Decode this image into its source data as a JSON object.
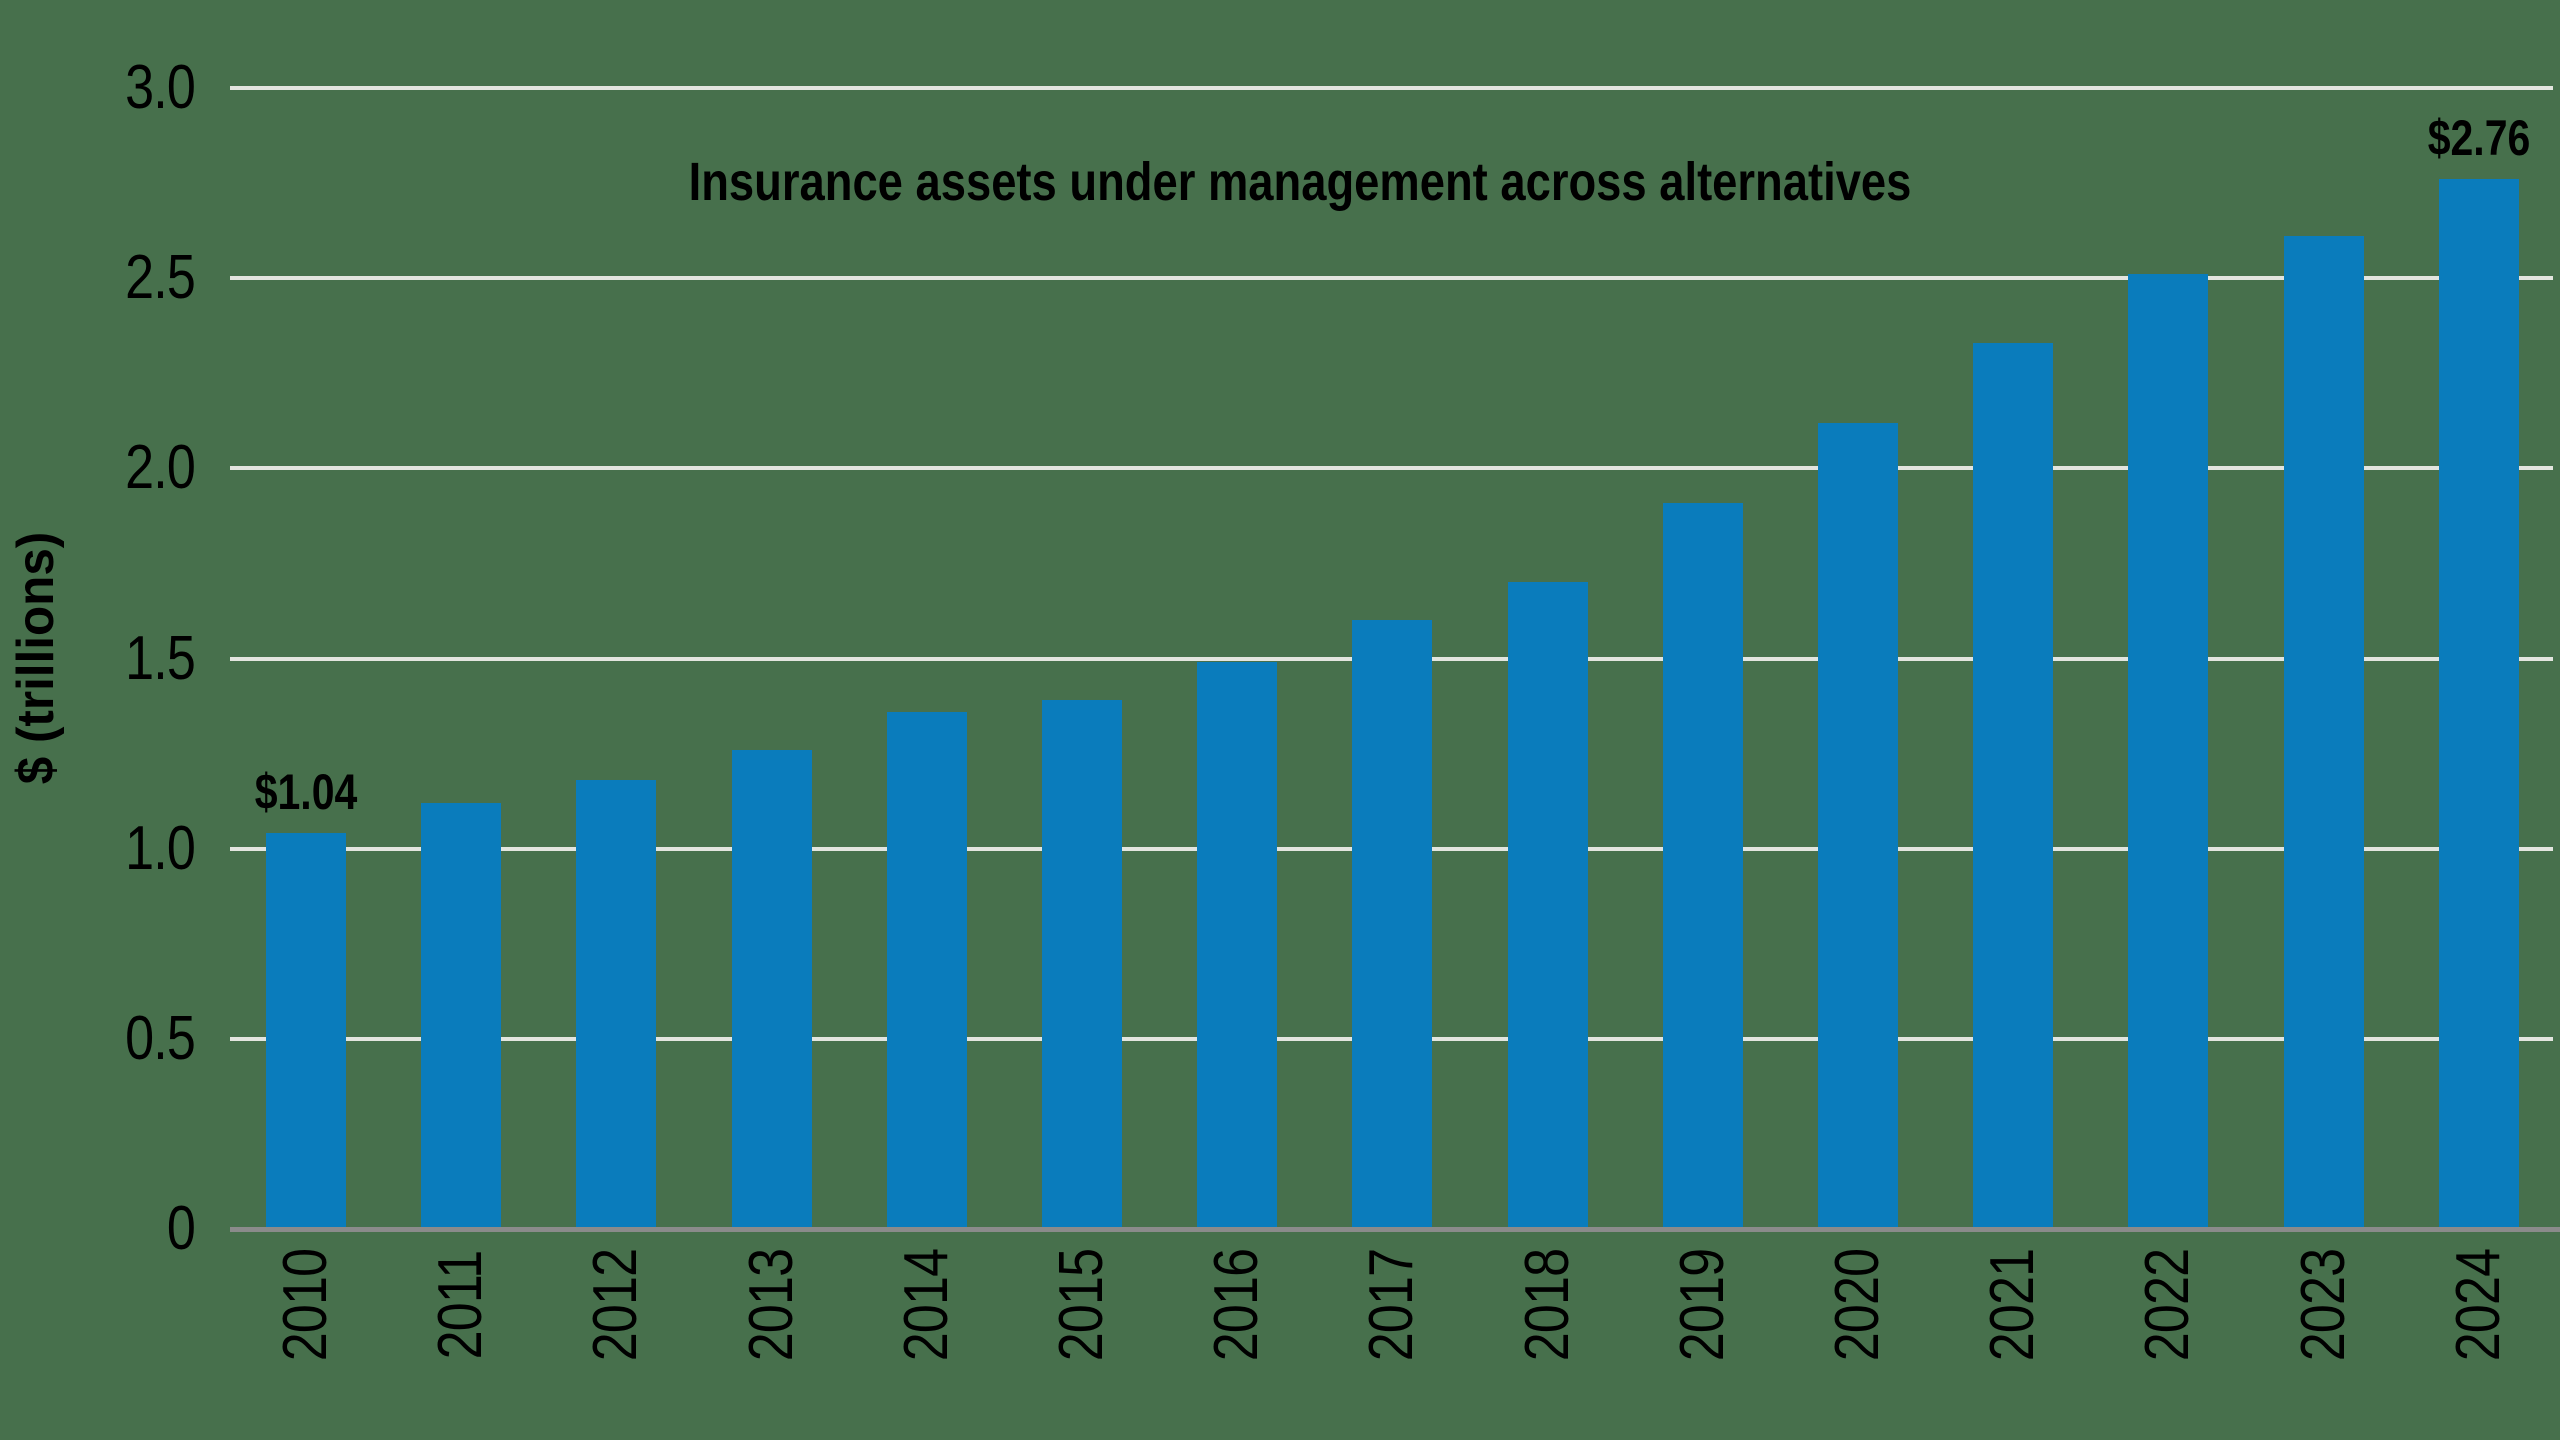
{
  "background_color": "#47704c",
  "chart_data": {
    "type": "bar",
    "title": "Insurance assets under management across alternatives",
    "xlabel": "",
    "ylabel": "$ (trillions)",
    "categories": [
      "2010",
      "2011",
      "2012",
      "2013",
      "2014",
      "2015",
      "2016",
      "2017",
      "2018",
      "2019",
      "2020",
      "2021",
      "2022",
      "2023",
      "2024"
    ],
    "values": [
      1.04,
      1.12,
      1.18,
      1.26,
      1.36,
      1.39,
      1.49,
      1.6,
      1.7,
      1.91,
      2.12,
      2.33,
      2.51,
      2.61,
      2.76
    ],
    "ylim": [
      0,
      3.0
    ],
    "yticks": [
      0,
      0.5,
      1.0,
      1.5,
      2.0,
      2.5,
      3.0
    ],
    "ytick_labels": [
      "0",
      "0.5",
      "1.0",
      "1.5",
      "2.0",
      "2.5",
      "3.0"
    ],
    "grid": true,
    "legend": null,
    "annotations": [
      {
        "category": "2010",
        "text": "$1.04"
      },
      {
        "category": "2024",
        "text": "$2.76"
      }
    ],
    "colors": {
      "bar": "#0a7cbc",
      "gridline": "#e3e5df",
      "axis_line": "#8b8b8b",
      "text": "#000000"
    }
  }
}
